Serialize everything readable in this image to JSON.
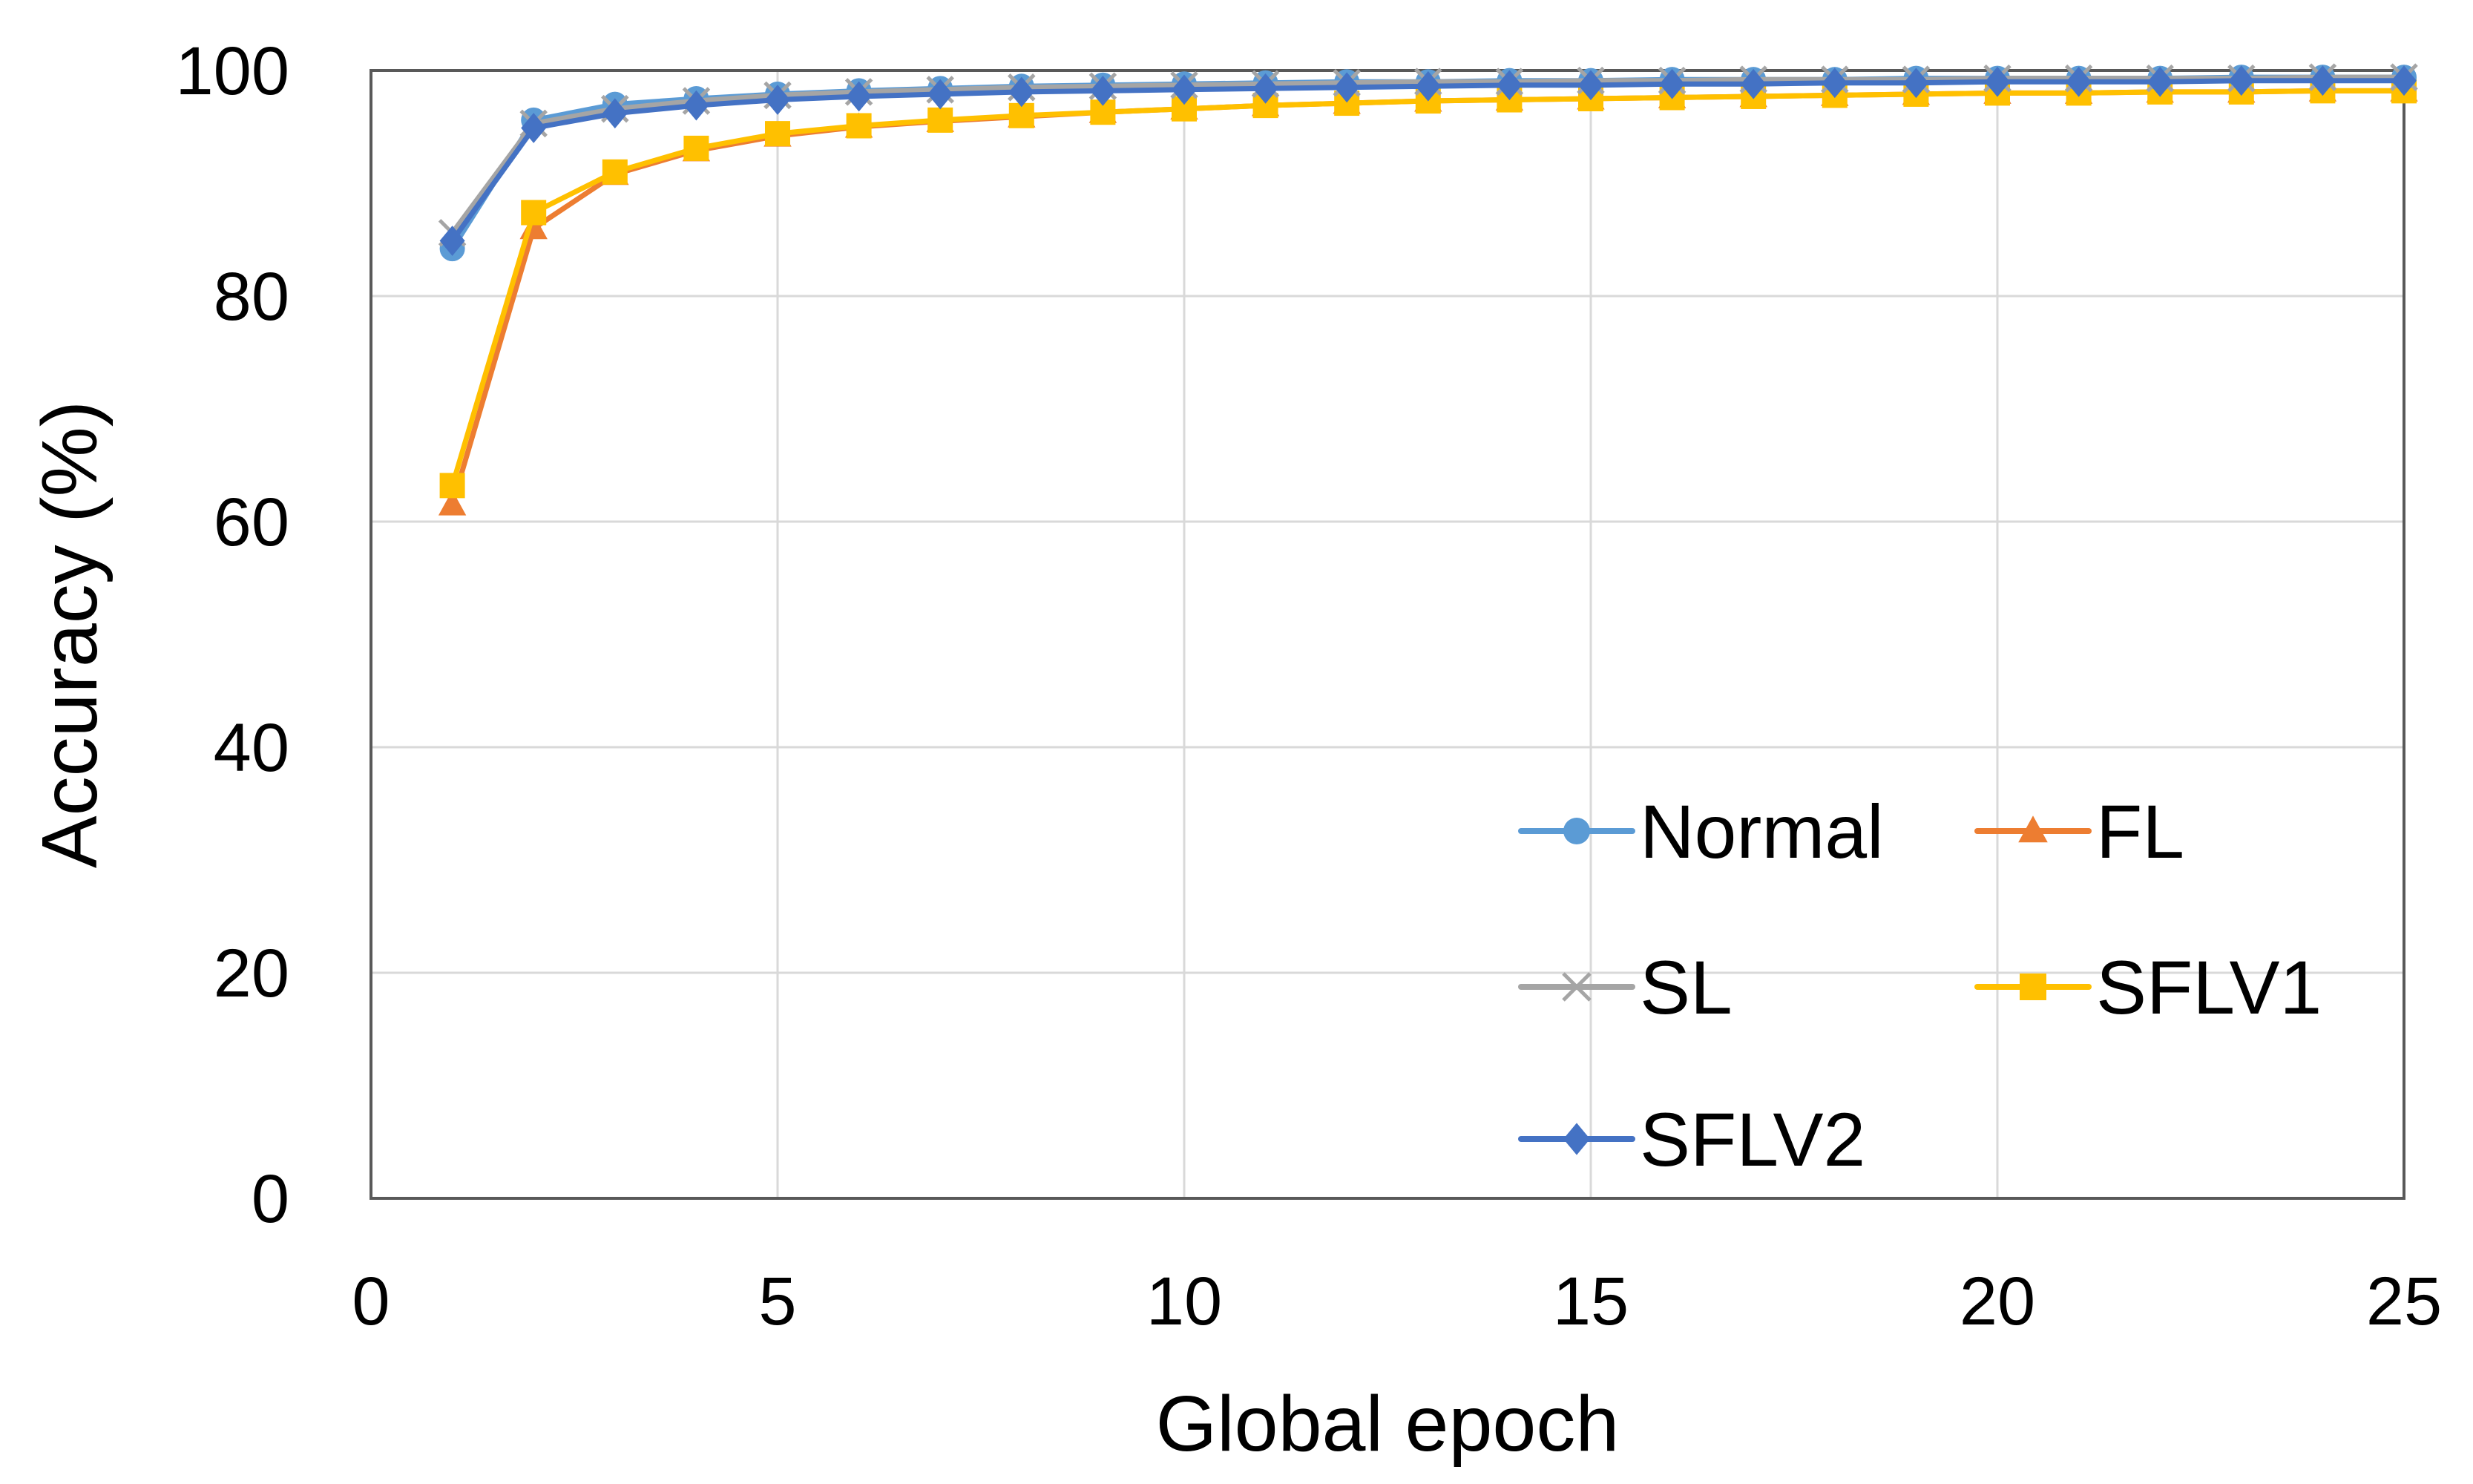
{
  "chart_data": {
    "type": "line",
    "title": "",
    "xlabel": "Global epoch",
    "ylabel": "Accuracy (%)",
    "xlim": [
      0,
      25
    ],
    "ylim": [
      0,
      100
    ],
    "xticks": [
      0,
      5,
      10,
      15,
      20,
      25
    ],
    "yticks": [
      0,
      20,
      40,
      60,
      80,
      100
    ],
    "grid": true,
    "legend_position": "bottom-right",
    "legend_columns": 2,
    "x": [
      1,
      2,
      3,
      4,
      5,
      6,
      7,
      8,
      9,
      10,
      11,
      12,
      13,
      14,
      15,
      16,
      17,
      18,
      19,
      20,
      21,
      22,
      23,
      24,
      25
    ],
    "series": [
      {
        "name": "Normal",
        "color": "#5B9BD5",
        "marker": "circle",
        "values": [
          84.2,
          95.6,
          97.0,
          97.5,
          97.9,
          98.2,
          98.4,
          98.6,
          98.7,
          98.8,
          98.9,
          99.0,
          99.0,
          99.1,
          99.1,
          99.2,
          99.2,
          99.2,
          99.3,
          99.3,
          99.3,
          99.3,
          99.4,
          99.4,
          99.4
        ]
      },
      {
        "name": "FL",
        "color": "#ED7D31",
        "marker": "triangle",
        "values": [
          61.5,
          86.0,
          90.8,
          92.9,
          94.2,
          95.0,
          95.5,
          95.9,
          96.3,
          96.6,
          96.9,
          97.1,
          97.3,
          97.4,
          97.5,
          97.6,
          97.7,
          97.8,
          97.9,
          98.0,
          98.0,
          98.1,
          98.1,
          98.2,
          98.2
        ]
      },
      {
        "name": "SL",
        "color": "#A5A5A5",
        "marker": "x",
        "values": [
          85.6,
          95.3,
          96.6,
          97.3,
          97.8,
          98.1,
          98.3,
          98.5,
          98.6,
          98.7,
          98.8,
          98.9,
          99.0,
          99.0,
          99.1,
          99.1,
          99.2,
          99.2,
          99.2,
          99.3,
          99.3,
          99.3,
          99.3,
          99.4,
          99.4
        ]
      },
      {
        "name": "SFLV1",
        "color": "#FFC000",
        "marker": "square",
        "values": [
          63.2,
          87.4,
          91.0,
          93.1,
          94.4,
          95.1,
          95.6,
          96.0,
          96.3,
          96.6,
          96.9,
          97.1,
          97.3,
          97.4,
          97.5,
          97.6,
          97.7,
          97.8,
          97.9,
          98.0,
          98.0,
          98.1,
          98.1,
          98.2,
          98.2
        ]
      },
      {
        "name": "SFLV2",
        "color": "#4472C4",
        "marker": "diamond",
        "values": [
          84.9,
          94.9,
          96.2,
          96.9,
          97.4,
          97.7,
          97.9,
          98.1,
          98.2,
          98.3,
          98.4,
          98.5,
          98.6,
          98.7,
          98.7,
          98.8,
          98.8,
          98.9,
          98.9,
          99.0,
          99.0,
          99.0,
          99.1,
          99.1,
          99.1
        ]
      }
    ]
  }
}
